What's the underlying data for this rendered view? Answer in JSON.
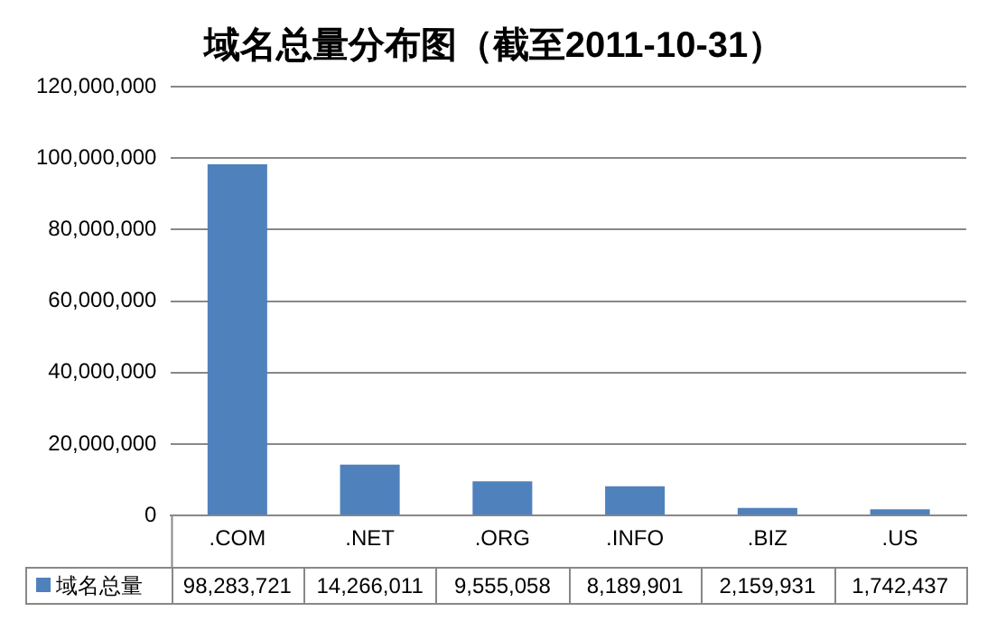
{
  "chart_data": {
    "type": "bar",
    "title": "域名总量分布图（截至2011-10-31）",
    "categories": [
      ".COM",
      ".NET",
      ".ORG",
      ".INFO",
      ".BIZ",
      ".US"
    ],
    "series": [
      {
        "name": "域名总量",
        "color": "#4f81bd",
        "values": [
          98283721,
          14266011,
          9555058,
          8189901,
          2159931,
          1742437
        ],
        "value_labels": [
          "98,283,721",
          "14,266,011",
          "9,555,058",
          "8,189,901",
          "2,159,931",
          "1,742,437"
        ]
      }
    ],
    "ylim": [
      0,
      120000000
    ],
    "yticks": [
      0,
      {
        "value": 20000000,
        "label": "20,000,000"
      },
      {
        "value": 40000000,
        "label": "40,000,000"
      },
      {
        "value": 60000000,
        "label": "60,000,000"
      },
      {
        "value": 80000000,
        "label": "80,000,000"
      },
      {
        "value": 100000000,
        "label": "100,000,000"
      },
      {
        "value": 120000000,
        "label": "120,000,000"
      }
    ],
    "grid": "y",
    "legend": "bottom"
  }
}
